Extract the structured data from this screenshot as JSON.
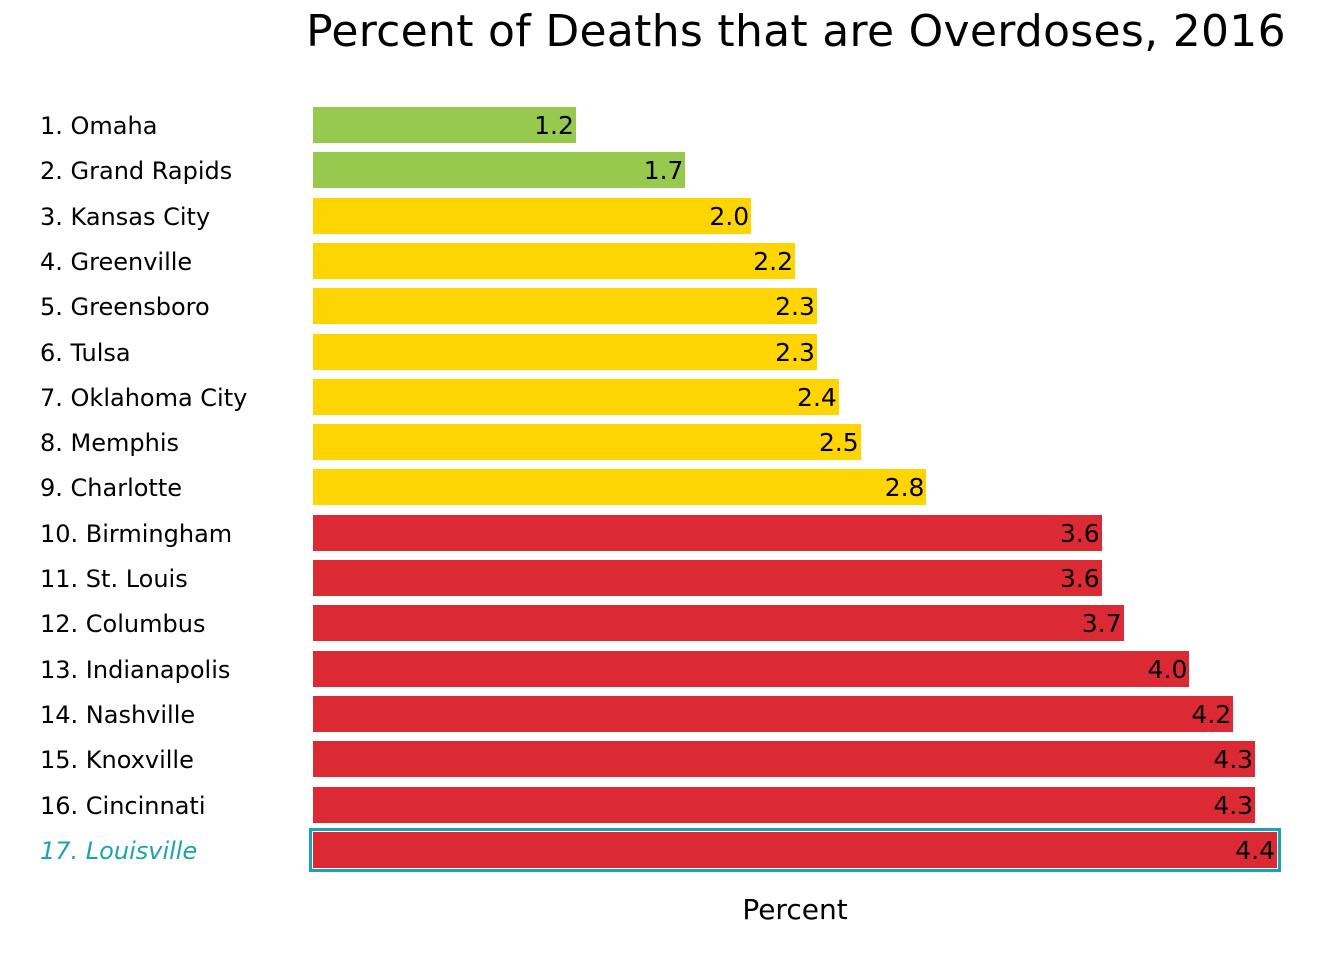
{
  "chart_data": {
    "type": "bar",
    "orientation": "horizontal",
    "title": "Percent of Deaths that are Overdoses, 2016",
    "xlabel": "Percent",
    "ylabel": "",
    "categories": [
      "1. Omaha",
      "2. Grand Rapids",
      "3. Kansas City",
      "4. Greenville",
      "5. Greensboro",
      "6. Tulsa",
      "7. Oklahoma City",
      "8. Memphis",
      "9. Charlotte",
      "10. Birmingham",
      "11. St. Louis",
      "12. Columbus",
      "13. Indianapolis",
      "14. Nashville",
      "15. Knoxville",
      "16. Cincinnati",
      "17. Louisville"
    ],
    "values": [
      1.2,
      1.7,
      2.0,
      2.2,
      2.3,
      2.3,
      2.4,
      2.5,
      2.8,
      3.6,
      3.6,
      3.7,
      4.0,
      4.2,
      4.3,
      4.3,
      4.4
    ],
    "display_values": [
      "1.2",
      "1.7",
      "2.0",
      "2.2",
      "2.3",
      "2.3",
      "2.4",
      "2.5",
      "2.8",
      "3.6",
      "3.6",
      "3.7",
      "4.0",
      "4.2",
      "4.3",
      "4.3",
      "4.4"
    ],
    "tiers": [
      "green",
      "green",
      "yellow",
      "yellow",
      "yellow",
      "yellow",
      "yellow",
      "yellow",
      "yellow",
      "red",
      "red",
      "red",
      "red",
      "red",
      "red",
      "red",
      "red"
    ],
    "highlight_index": 16,
    "colors": {
      "green": "#97c94f",
      "yellow": "#fed500",
      "red": "#dc2a35",
      "highlight": "#1ba3b3"
    },
    "xlim": [
      0,
      4.4
    ],
    "grid": false,
    "legend": "none"
  }
}
